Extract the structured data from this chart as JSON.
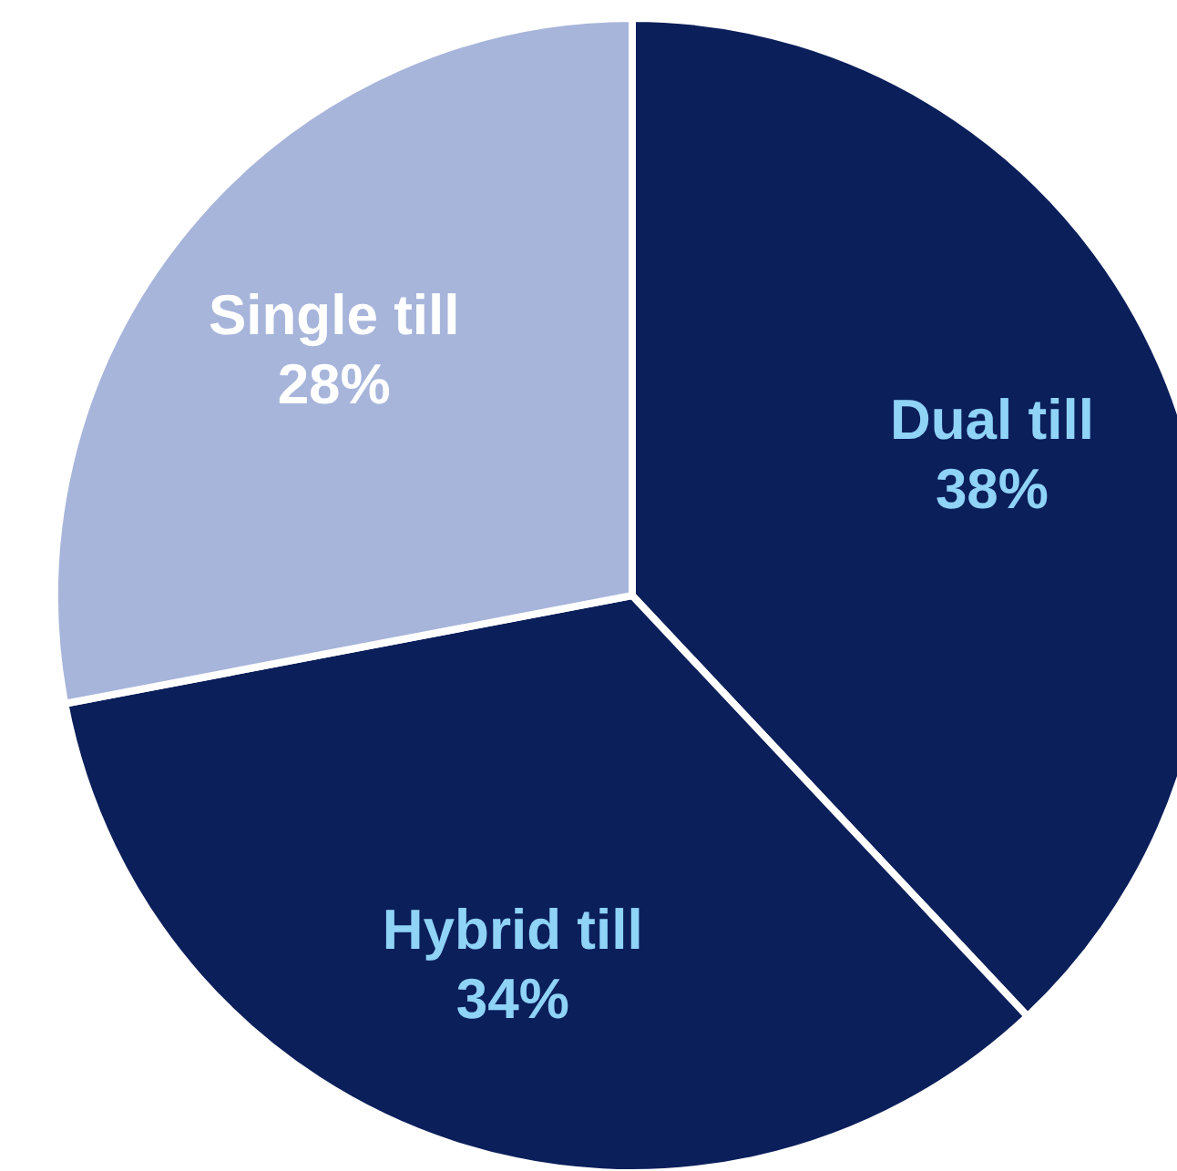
{
  "chart_data": {
    "type": "pie",
    "categories": [
      "Dual till",
      "Hybrid till",
      "Single till"
    ],
    "values": [
      38,
      34,
      28
    ],
    "colors": [
      "#0b1f5b",
      "#0b1f5b",
      "#a7b5db"
    ],
    "value_labels": [
      "38%",
      "34%",
      "28%"
    ]
  }
}
